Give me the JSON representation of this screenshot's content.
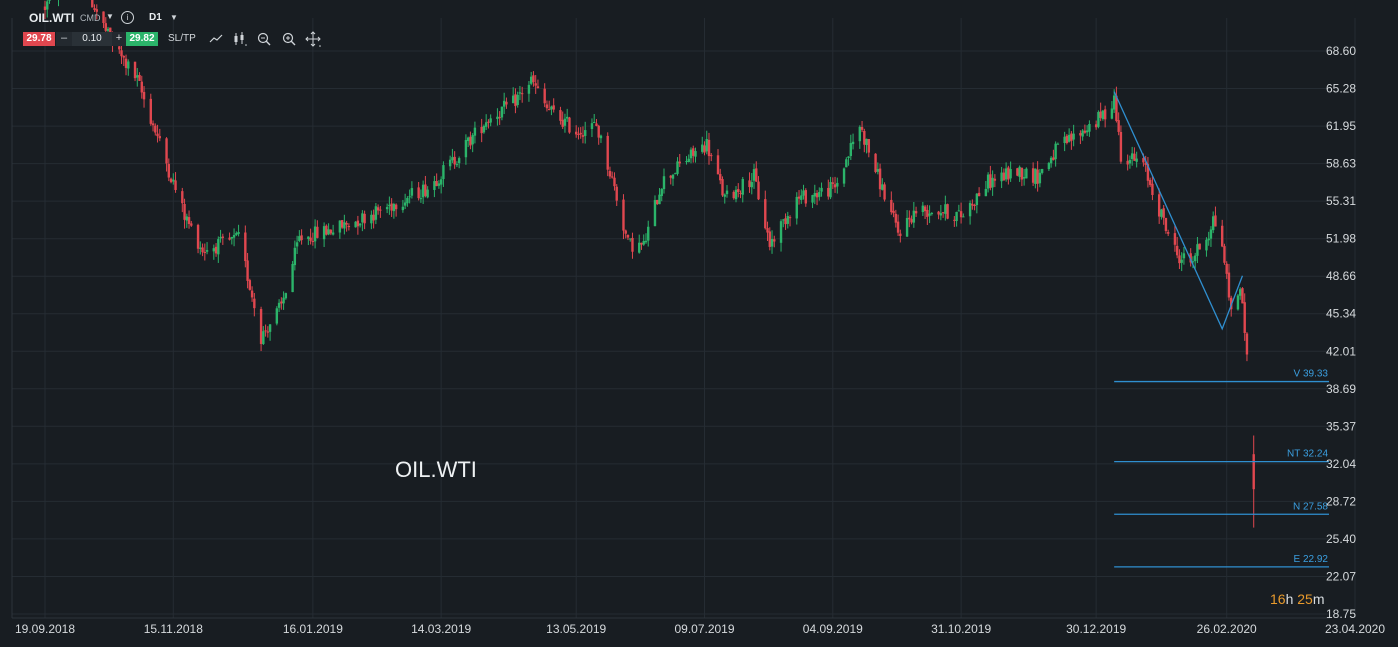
{
  "toolbar": {
    "symbol": "OIL.WTI",
    "instrument_type": "CMD",
    "info_icon": "info-icon",
    "timeframe": "D1",
    "sell_price": "29.78",
    "minus": "–",
    "quantity": "0.10",
    "plus": "+",
    "buy_price": "29.82",
    "sltp_label": "SL/TP",
    "tool_icons": [
      "line-chart-icon",
      "candlestick-icon",
      "zoom-out-icon",
      "zoom-in-icon",
      "crosshair-icon"
    ]
  },
  "watermark": "OIL.WTI",
  "countdown": {
    "hours": "16",
    "h": "h",
    "minutes": "25",
    "m": "m"
  },
  "colors": {
    "background": "#181d22",
    "up": "#2bb46a",
    "down": "#e0474f",
    "level": "#2f8fd0",
    "grid": "#252c33",
    "countdown": "#e89a2c"
  },
  "chart_data": {
    "type": "candlestick",
    "symbol": "OIL.WTI",
    "timeframe": "D1",
    "x_tick_labels": [
      "19.09.2018",
      "15.11.2018",
      "16.01.2019",
      "14.03.2019",
      "13.05.2019",
      "09.07.2019",
      "04.09.2019",
      "31.10.2019",
      "30.12.2019",
      "26.02.2020",
      "23.04.2020"
    ],
    "y_tick_labels": [
      "68.60",
      "65.28",
      "61.95",
      "58.63",
      "55.31",
      "51.98",
      "48.66",
      "45.34",
      "42.01",
      "38.69",
      "35.37",
      "32.04",
      "28.72",
      "25.40",
      "22.07",
      "18.75"
    ],
    "ylim": [
      18.75,
      68.6
    ],
    "x_range": [
      "19.09.2018",
      "23.04.2020"
    ],
    "grid": true,
    "price_path": [
      {
        "date": "2018-09-19",
        "price": 72.5
      },
      {
        "date": "2018-10-03",
        "price": 76.0
      },
      {
        "date": "2018-10-18",
        "price": 69.5
      },
      {
        "date": "2018-10-30",
        "price": 66.0
      },
      {
        "date": "2018-11-08",
        "price": 61.0
      },
      {
        "date": "2018-11-20",
        "price": 54.0
      },
      {
        "date": "2018-11-28",
        "price": 51.0
      },
      {
        "date": "2018-12-07",
        "price": 51.5
      },
      {
        "date": "2018-12-14",
        "price": 52.0
      },
      {
        "date": "2018-12-20",
        "price": 47.0
      },
      {
        "date": "2018-12-24",
        "price": 43.3
      },
      {
        "date": "2019-01-02",
        "price": 46.0
      },
      {
        "date": "2019-01-10",
        "price": 52.0
      },
      {
        "date": "2019-01-28",
        "price": 53.0
      },
      {
        "date": "2019-02-15",
        "price": 54.5
      },
      {
        "date": "2019-02-25",
        "price": 55.5
      },
      {
        "date": "2019-03-08",
        "price": 56.5
      },
      {
        "date": "2019-03-20",
        "price": 59.0
      },
      {
        "date": "2019-04-03",
        "price": 62.5
      },
      {
        "date": "2019-04-15",
        "price": 64.0
      },
      {
        "date": "2019-04-23",
        "price": 66.0
      },
      {
        "date": "2019-04-30",
        "price": 63.5
      },
      {
        "date": "2019-05-13",
        "price": 61.5
      },
      {
        "date": "2019-05-22",
        "price": 62.0
      },
      {
        "date": "2019-05-30",
        "price": 56.5
      },
      {
        "date": "2019-06-05",
        "price": 51.5
      },
      {
        "date": "2019-06-12",
        "price": 51.3
      },
      {
        "date": "2019-06-20",
        "price": 57.0
      },
      {
        "date": "2019-07-01",
        "price": 59.0
      },
      {
        "date": "2019-07-10",
        "price": 60.4
      },
      {
        "date": "2019-07-18",
        "price": 55.5
      },
      {
        "date": "2019-07-31",
        "price": 57.5
      },
      {
        "date": "2019-08-07",
        "price": 51.5
      },
      {
        "date": "2019-08-19",
        "price": 55.5
      },
      {
        "date": "2019-08-28",
        "price": 56.0
      },
      {
        "date": "2019-09-05",
        "price": 56.5
      },
      {
        "date": "2019-09-16",
        "price": 62.0
      },
      {
        "date": "2019-09-24",
        "price": 57.5
      },
      {
        "date": "2019-10-03",
        "price": 52.5
      },
      {
        "date": "2019-10-11",
        "price": 54.5
      },
      {
        "date": "2019-10-22",
        "price": 54.5
      },
      {
        "date": "2019-10-31",
        "price": 54.0
      },
      {
        "date": "2019-11-12",
        "price": 57.0
      },
      {
        "date": "2019-11-25",
        "price": 58.0
      },
      {
        "date": "2019-12-04",
        "price": 57.5
      },
      {
        "date": "2019-12-13",
        "price": 60.0
      },
      {
        "date": "2019-12-24",
        "price": 61.5
      },
      {
        "date": "2020-01-03",
        "price": 63.0
      },
      {
        "date": "2020-01-07",
        "price": 64.5
      },
      {
        "date": "2020-01-10",
        "price": 59.5
      },
      {
        "date": "2020-01-20",
        "price": 58.5
      },
      {
        "date": "2020-01-29",
        "price": 53.5
      },
      {
        "date": "2020-02-04",
        "price": 50.5
      },
      {
        "date": "2020-02-10",
        "price": 50.0
      },
      {
        "date": "2020-02-18",
        "price": 52.5
      },
      {
        "date": "2020-02-20",
        "price": 53.8
      },
      {
        "date": "2020-02-24",
        "price": 51.5
      },
      {
        "date": "2020-02-28",
        "price": 45.5
      },
      {
        "date": "2020-03-02",
        "price": 47.5
      },
      {
        "date": "2020-03-04",
        "price": 46.5
      },
      {
        "date": "2020-03-06",
        "price": 41.3
      },
      {
        "date": "2020-03-09",
        "price": 31.0
      }
    ],
    "drawn_pattern": [
      {
        "date": "2020-01-07",
        "price": 65.0
      },
      {
        "date": "2020-02-24",
        "price": 44.0
      },
      {
        "date": "2020-03-04",
        "price": 48.7
      }
    ],
    "levels": [
      {
        "label": "V 39.33",
        "price": 39.33
      },
      {
        "label": "NT 32.24",
        "price": 32.24
      },
      {
        "label": "N 27.58",
        "price": 27.58
      },
      {
        "label": "E 22.92",
        "price": 22.92
      }
    ]
  }
}
